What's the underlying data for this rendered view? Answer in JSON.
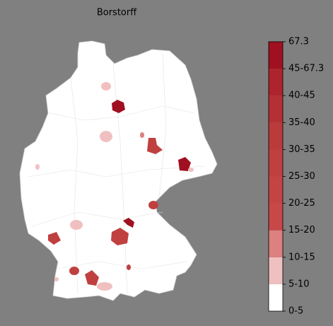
{
  "map": {
    "title": "Borstorff"
  },
  "colorbar": {
    "labels": [
      "0-5",
      "5-10",
      "10-15",
      "15-20",
      "20-25",
      "25-30",
      "30-35",
      "35-40",
      "40-45",
      "45-67.3",
      "67.3"
    ],
    "colors": [
      "#ffffff",
      "#f0c0c0",
      "#dc8080",
      "#c84848",
      "#c44444",
      "#c04040",
      "#bb3a3a",
      "#b53034",
      "#ad242c",
      "#a01020"
    ]
  }
}
